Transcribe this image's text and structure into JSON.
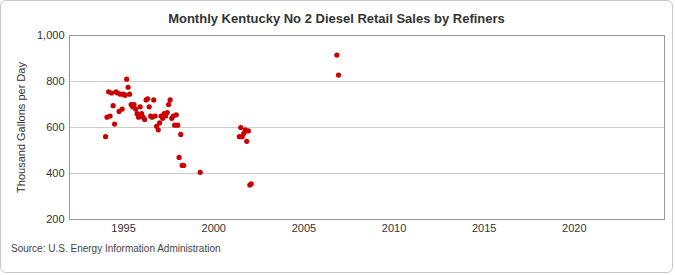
{
  "chart_data": {
    "type": "scatter",
    "title": "Monthly Kentucky No 2 Diesel Retail Sales by Refiners",
    "y_label": "Thousand Gallons per Day",
    "caption": "Source: U.S. Energy Information Administration",
    "x": [
      1994.0,
      1994.08,
      1994.17,
      1994.25,
      1994.33,
      1994.42,
      1994.5,
      1994.58,
      1994.67,
      1994.75,
      1994.83,
      1994.92,
      1995.0,
      1995.08,
      1995.17,
      1995.25,
      1995.33,
      1995.42,
      1995.5,
      1995.58,
      1995.67,
      1995.75,
      1995.83,
      1995.92,
      1996.0,
      1996.08,
      1996.17,
      1996.25,
      1996.33,
      1996.42,
      1996.5,
      1996.58,
      1996.67,
      1996.75,
      1996.83,
      1996.92,
      1997.0,
      1997.08,
      1997.17,
      1997.25,
      1997.33,
      1997.42,
      1997.5,
      1997.58,
      1997.67,
      1997.75,
      1997.83,
      1997.92,
      1998.0,
      1998.08,
      1998.17,
      1998.25,
      1998.33,
      1999.25,
      2001.42,
      2001.5,
      2001.58,
      2001.67,
      2001.75,
      2001.83,
      2001.92,
      2002.0,
      2002.08,
      2006.83,
      2006.92
    ],
    "values": [
      560,
      645,
      755,
      650,
      750,
      695,
      615,
      755,
      750,
      670,
      745,
      680,
      745,
      740,
      810,
      775,
      745,
      700,
      690,
      700,
      680,
      660,
      645,
      690,
      660,
      645,
      635,
      720,
      725,
      690,
      650,
      645,
      720,
      650,
      605,
      590,
      620,
      650,
      640,
      660,
      650,
      665,
      700,
      720,
      640,
      650,
      610,
      655,
      610,
      470,
      570,
      435,
      435,
      405,
      560,
      600,
      560,
      575,
      590,
      540,
      585,
      350,
      355,
      915,
      828
    ],
    "color": "#cc0000",
    "marker": "circle",
    "xlim": [
      1992,
      2025
    ],
    "xticks": [
      1995,
      2000,
      2005,
      2010,
      2015,
      2020
    ],
    "ylim": [
      200,
      1000
    ],
    "yticks": [
      200,
      400,
      600,
      800,
      1000
    ],
    "grid": true
  }
}
